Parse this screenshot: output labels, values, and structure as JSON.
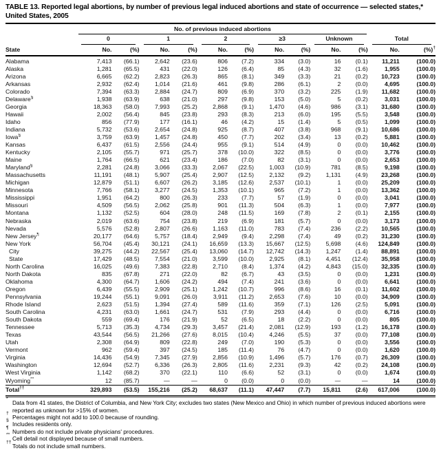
{
  "title": {
    "line1": "TABLE 13. Reported legal abortions, by number of previous legal induced abortions and state of occurrence — selected states,*",
    "line2": "United States, 2005"
  },
  "header": {
    "state_label": "State",
    "group_label": "No. of previous induced abortions",
    "groups": [
      "0",
      "1",
      "2",
      "≥3",
      "Unknown"
    ],
    "total_label": "Total",
    "no_label": "No.",
    "pct_label": "(%)",
    "dagger": "†"
  },
  "rows": [
    {
      "state": "Alabama",
      "marker": "",
      "indent": false,
      "cells": [
        "7,413",
        "(66.1)",
        "2,642",
        "(23.6)",
        "806",
        "(7.2)",
        "334",
        "(3.0)",
        "16",
        "(0.1)",
        "11,211",
        "(100.0)"
      ]
    },
    {
      "state": "Alaska",
      "marker": "",
      "indent": false,
      "cells": [
        "1,281",
        "(65.5)",
        "431",
        "(22.0)",
        "126",
        "(6.4)",
        "85",
        "(4.3)",
        "32",
        "(1.6)",
        "1,955",
        "(100.0)"
      ]
    },
    {
      "state": "Arizona",
      "marker": "",
      "indent": false,
      "cells": [
        "6,665",
        "(62.2)",
        "2,823",
        "(26.3)",
        "865",
        "(8.1)",
        "349",
        "(3.3)",
        "21",
        "(0.2)",
        "10,723",
        "(100.0)"
      ]
    },
    {
      "state": "Arkansas",
      "marker": "",
      "indent": false,
      "cells": [
        "2,932",
        "(62.4)",
        "1,014",
        "(21.6)",
        "461",
        "(9.8)",
        "286",
        "(6.1)",
        "2",
        "(0.0)",
        "4,695",
        "(100.0)"
      ]
    },
    {
      "state": "Colorado",
      "marker": "",
      "indent": false,
      "cells": [
        "7,394",
        "(63.3)",
        "2,884",
        "(24.7)",
        "809",
        "(6.9)",
        "370",
        "(3.2)",
        "225",
        "(1.9)",
        "11,682",
        "(100.0)"
      ]
    },
    {
      "state": "Delaware",
      "marker": "§",
      "indent": false,
      "cells": [
        "1,938",
        "(63.9)",
        "638",
        "(21.0)",
        "297",
        "(9.8)",
        "153",
        "(5.0)",
        "5",
        "(0.2)",
        "3,031",
        "(100.0)"
      ]
    },
    {
      "state": "Georgia",
      "marker": "",
      "indent": false,
      "cells": [
        "18,363",
        "(58.0)",
        "7,993",
        "(25.2)",
        "2,868",
        "(9.1)",
        "1,470",
        "(4.6)",
        "986",
        "(3.1)",
        "31,680",
        "(100.0)"
      ]
    },
    {
      "state": "Hawaii",
      "marker": "",
      "indent": false,
      "cells": [
        "2,002",
        "(56.4)",
        "845",
        "(23.8)",
        "293",
        "(8.3)",
        "213",
        "(6.0)",
        "195",
        "(5.5)",
        "3,548",
        "(100.0)"
      ]
    },
    {
      "state": "Idaho",
      "marker": "",
      "indent": false,
      "cells": [
        "856",
        "(77.9)",
        "177",
        "(16.1)",
        "46",
        "(4.2)",
        "15",
        "(1.4)",
        "5",
        "(0.5)",
        "1,099",
        "(100.0)"
      ]
    },
    {
      "state": "Indiana",
      "marker": "",
      "indent": false,
      "cells": [
        "5,732",
        "(53.6)",
        "2,654",
        "(24.8)",
        "925",
        "(8.7)",
        "407",
        "(3.8)",
        "968",
        "(9.1)",
        "10,686",
        "(100.0)"
      ]
    },
    {
      "state": "Iowa",
      "marker": "§",
      "indent": false,
      "cells": [
        "3,759",
        "(63.9)",
        "1,457",
        "(24.8)",
        "450",
        "(7.7)",
        "202",
        "(3.4)",
        "13",
        "(0.2)",
        "5,881",
        "(100.0)"
      ]
    },
    {
      "state": "Kansas",
      "marker": "",
      "indent": false,
      "cells": [
        "6,437",
        "(61.5)",
        "2,556",
        "(24.4)",
        "955",
        "(9.1)",
        "514",
        "(4.9)",
        "0",
        "(0.0)",
        "10,462",
        "(100.0)"
      ]
    },
    {
      "state": "Kentucky",
      "marker": "",
      "indent": false,
      "cells": [
        "2,105",
        "(55.7)",
        "971",
        "(25.7)",
        "378",
        "(10.0)",
        "322",
        "(8.5)",
        "0",
        "(0.0)",
        "3,776",
        "(100.0)"
      ]
    },
    {
      "state": "Maine",
      "marker": "",
      "indent": false,
      "cells": [
        "1,764",
        "(66.5)",
        "621",
        "(23.4)",
        "186",
        "(7.0)",
        "82",
        "(3.1)",
        "0",
        "(0.0)",
        "2,653",
        "(100.0)"
      ]
    },
    {
      "state": "Maryland",
      "marker": "§",
      "indent": false,
      "cells": [
        "2,281",
        "(24.8)",
        "3,066",
        "(33.3)",
        "2,067",
        "(22.5)",
        "1,003",
        "(10.9)",
        "781",
        "(8.5)",
        "9,198",
        "(100.0)"
      ]
    },
    {
      "state": "Massachusetts",
      "marker": "",
      "indent": false,
      "cells": [
        "11,191",
        "(48.1)",
        "5,907",
        "(25.4)",
        "2,907",
        "(12.5)",
        "2,132",
        "(9.2)",
        "1,131",
        "(4.9)",
        "23,268",
        "(100.0)"
      ]
    },
    {
      "state": "Michigan",
      "marker": "",
      "indent": false,
      "cells": [
        "12,879",
        "(51.1)",
        "6,607",
        "(26.2)",
        "3,185",
        "(12.6)",
        "2,537",
        "(10.1)",
        "1",
        "(0.0)",
        "25,209",
        "(100.0)"
      ]
    },
    {
      "state": "Minnesota",
      "marker": "",
      "indent": false,
      "cells": [
        "7,766",
        "(58.1)",
        "3,277",
        "(24.5)",
        "1,353",
        "(10.1)",
        "965",
        "(7.2)",
        "1",
        "(0.0)",
        "13,362",
        "(100.0)"
      ]
    },
    {
      "state": "Mississippi",
      "marker": "",
      "indent": false,
      "cells": [
        "1,951",
        "(64.2)",
        "800",
        "(26.3)",
        "233",
        "(7.7)",
        "57",
        "(1.9)",
        "0",
        "(0.0)",
        "3,041",
        "(100.0)"
      ]
    },
    {
      "state": "Missouri",
      "marker": "",
      "indent": false,
      "cells": [
        "4,509",
        "(56.5)",
        "2,062",
        "(25.8)",
        "901",
        "(11.3)",
        "504",
        "(6.3)",
        "1",
        "(0.0)",
        "7,977",
        "(100.0)"
      ]
    },
    {
      "state": "Montana",
      "marker": "",
      "indent": false,
      "cells": [
        "1,132",
        "(52.5)",
        "604",
        "(28.0)",
        "248",
        "(11.5)",
        "169",
        "(7.8)",
        "2",
        "(0.1)",
        "2,155",
        "(100.0)"
      ]
    },
    {
      "state": "Nebraska",
      "marker": "",
      "indent": false,
      "cells": [
        "2,019",
        "(63.6)",
        "754",
        "(23.8)",
        "219",
        "(6.9)",
        "181",
        "(5.7)",
        "0",
        "(0.0)",
        "3,173",
        "(100.0)"
      ]
    },
    {
      "state": "Nevada",
      "marker": "",
      "indent": false,
      "cells": [
        "5,576",
        "(52.8)",
        "2,807",
        "(26.6)",
        "1,163",
        "(11.0)",
        "783",
        "(7.4)",
        "236",
        "(2.2)",
        "10,565",
        "(100.0)"
      ]
    },
    {
      "state": "New Jersey",
      "marker": "¶",
      "indent": false,
      "cells": [
        "20,177",
        "(64.6)",
        "5,757",
        "(18.4)",
        "2,949",
        "(9.4)",
        "2,298",
        "(7.4)",
        "49",
        "(0.2)",
        "31,230",
        "(100.0)"
      ]
    },
    {
      "state": "New York",
      "marker": "",
      "indent": false,
      "cells": [
        "56,704",
        "(45.4)",
        "30,121",
        "(24.1)",
        "16,659",
        "(13.3)",
        "15,667",
        "(12.5)",
        "5,698",
        "(4.6)",
        "124,849",
        "(100.0)"
      ]
    },
    {
      "state": "City",
      "marker": "",
      "indent": true,
      "cells": [
        "39,275",
        "(44.2)",
        "22,567",
        "(25.4)",
        "13,060",
        "(14.7)",
        "12,742",
        "(14.3)",
        "1,247",
        "(1.4)",
        "88,891",
        "(100.0)"
      ]
    },
    {
      "state": "State",
      "marker": "",
      "indent": true,
      "cells": [
        "17,429",
        "(48.5)",
        "7,554",
        "(21.0)",
        "3,599",
        "(10.0)",
        "2,925",
        "(8.1)",
        "4,451",
        "(12.4)",
        "35,958",
        "(100.0)"
      ]
    },
    {
      "state": "North Carolina",
      "marker": "",
      "indent": false,
      "cells": [
        "16,025",
        "(49.6)",
        "7,383",
        "(22.8)",
        "2,710",
        "(8.4)",
        "1,374",
        "(4.2)",
        "4,843",
        "(15.0)",
        "32,335",
        "(100.0)"
      ]
    },
    {
      "state": "North Dakota",
      "marker": "",
      "indent": false,
      "cells": [
        "835",
        "(67.8)",
        "271",
        "(22.0)",
        "82",
        "(6.7)",
        "43",
        "(3.5)",
        "0",
        "(0.0)",
        "1,231",
        "(100.0)"
      ]
    },
    {
      "state": "Oklahoma",
      "marker": "",
      "indent": false,
      "cells": [
        "4,300",
        "(64.7)",
        "1,606",
        "(24.2)",
        "494",
        "(7.4)",
        "241",
        "(3.6)",
        "0",
        "(0.0)",
        "6,641",
        "(100.0)"
      ]
    },
    {
      "state": "Oregon",
      "marker": "",
      "indent": false,
      "cells": [
        "6,439",
        "(55.5)",
        "2,909",
        "(25.1)",
        "1,242",
        "(10.7)",
        "996",
        "(8.6)",
        "16",
        "(0.1)",
        "11,602",
        "(100.0)"
      ]
    },
    {
      "state": "Pennsylvania",
      "marker": "",
      "indent": false,
      "cells": [
        "19,244",
        "(55.1)",
        "9,091",
        "(26.0)",
        "3,911",
        "(11.2)",
        "2,653",
        "(7.6)",
        "10",
        "(0.0)",
        "34,909",
        "(100.0)"
      ]
    },
    {
      "state": "Rhode Island",
      "marker": "",
      "indent": false,
      "cells": [
        "2,623",
        "(51.5)",
        "1,394",
        "(27.4)",
        "589",
        "(11.6)",
        "359",
        "(7.1)",
        "126",
        "(2.5)",
        "5,091",
        "(100.0)"
      ]
    },
    {
      "state": "South Carolina",
      "marker": "",
      "indent": false,
      "cells": [
        "4,231",
        "(63.0)",
        "1,661",
        "(24.7)",
        "531",
        "(7.9)",
        "293",
        "(4.4)",
        "0",
        "(0.0)",
        "6,716",
        "(100.0)"
      ]
    },
    {
      "state": "South Dakota",
      "marker": "",
      "indent": false,
      "cells": [
        "559",
        "(69.4)",
        "176",
        "(21.9)",
        "52",
        "(6.5)",
        "18",
        "(2.2)",
        "0",
        "(0.0)",
        "805",
        "(100.0)"
      ]
    },
    {
      "state": "Tennessee",
      "marker": "",
      "indent": false,
      "cells": [
        "5,713",
        "(35.3)",
        "4,734",
        "(29.3)",
        "3,457",
        "(21.4)",
        "2,081",
        "(12.9)",
        "193",
        "(1.2)",
        "16,178",
        "(100.0)"
      ]
    },
    {
      "state": "Texas",
      "marker": "",
      "indent": false,
      "cells": [
        "43,544",
        "(56.5)",
        "21,266",
        "(27.6)",
        "8,015",
        "(10.4)",
        "4,246",
        "(5.5)",
        "37",
        "(0.0)",
        "77,108",
        "(100.0)"
      ]
    },
    {
      "state": "Utah",
      "marker": "",
      "indent": false,
      "cells": [
        "2,308",
        "(64.9)",
        "809",
        "(22.8)",
        "249",
        "(7.0)",
        "190",
        "(5.3)",
        "0",
        "(0.0)",
        "3,556",
        "(100.0)"
      ]
    },
    {
      "state": "Vermont",
      "marker": "",
      "indent": false,
      "cells": [
        "962",
        "(59.4)",
        "397",
        "(24.5)",
        "185",
        "(11.4)",
        "76",
        "(4.7)",
        "0",
        "(0.0)",
        "1,620",
        "(100.0)"
      ]
    },
    {
      "state": "Virginia",
      "marker": "",
      "indent": false,
      "cells": [
        "14,436",
        "(54.9)",
        "7,345",
        "(27.9)",
        "2,856",
        "(10.9)",
        "1,496",
        "(5.7)",
        "176",
        "(0.7)",
        "26,309",
        "(100.0)"
      ]
    },
    {
      "state": "Washington",
      "marker": "",
      "indent": false,
      "cells": [
        "12,694",
        "(52.7)",
        "6,336",
        "(26.3)",
        "2,805",
        "(11.6)",
        "2,231",
        "(9.3)",
        "42",
        "(0.2)",
        "24,108",
        "(100.0)"
      ]
    },
    {
      "state": "West Virginia",
      "marker": "",
      "indent": false,
      "cells": [
        "1,142",
        "(68.2)",
        "370",
        "(22.1)",
        "110",
        "(6.6)",
        "52",
        "(3.1)",
        "0",
        "(0.0)",
        "1,674",
        "(100.0)"
      ]
    },
    {
      "state": "Wyoming",
      "marker": "**",
      "indent": false,
      "cells": [
        "12",
        "(85.7)",
        "—",
        "—",
        "0",
        "(0.0)",
        "0",
        "(0.0)",
        "—",
        "—",
        "14",
        "(100.0)"
      ]
    }
  ],
  "total_row": {
    "state": "Total",
    "marker": "††",
    "cells": [
      "329,893",
      "(53.5)",
      "155,216",
      "(25.2)",
      "68,637",
      "(11.1)",
      "47,447",
      "(7.7)",
      "15,811",
      "(2.6)",
      "617,006",
      "(100.0)"
    ]
  },
  "footnotes": [
    {
      "marker": "*",
      "text": "Data from 41 states, the District of Columbia, and New York City; excludes two states (New Mexico and Ohio) in which number of previous induced abortions were reported as unknown for >15% of women."
    },
    {
      "marker": "†",
      "text": "Percentages might not add to 100.0 because of rounding."
    },
    {
      "marker": "§",
      "text": "Includes residents only."
    },
    {
      "marker": "¶",
      "text": "Numbers do not include private physicians' procedures."
    },
    {
      "marker": "**",
      "text": "Cell detail not displayed because of small numbers."
    },
    {
      "marker": "††",
      "text": "Totals do not include small numbers."
    }
  ]
}
